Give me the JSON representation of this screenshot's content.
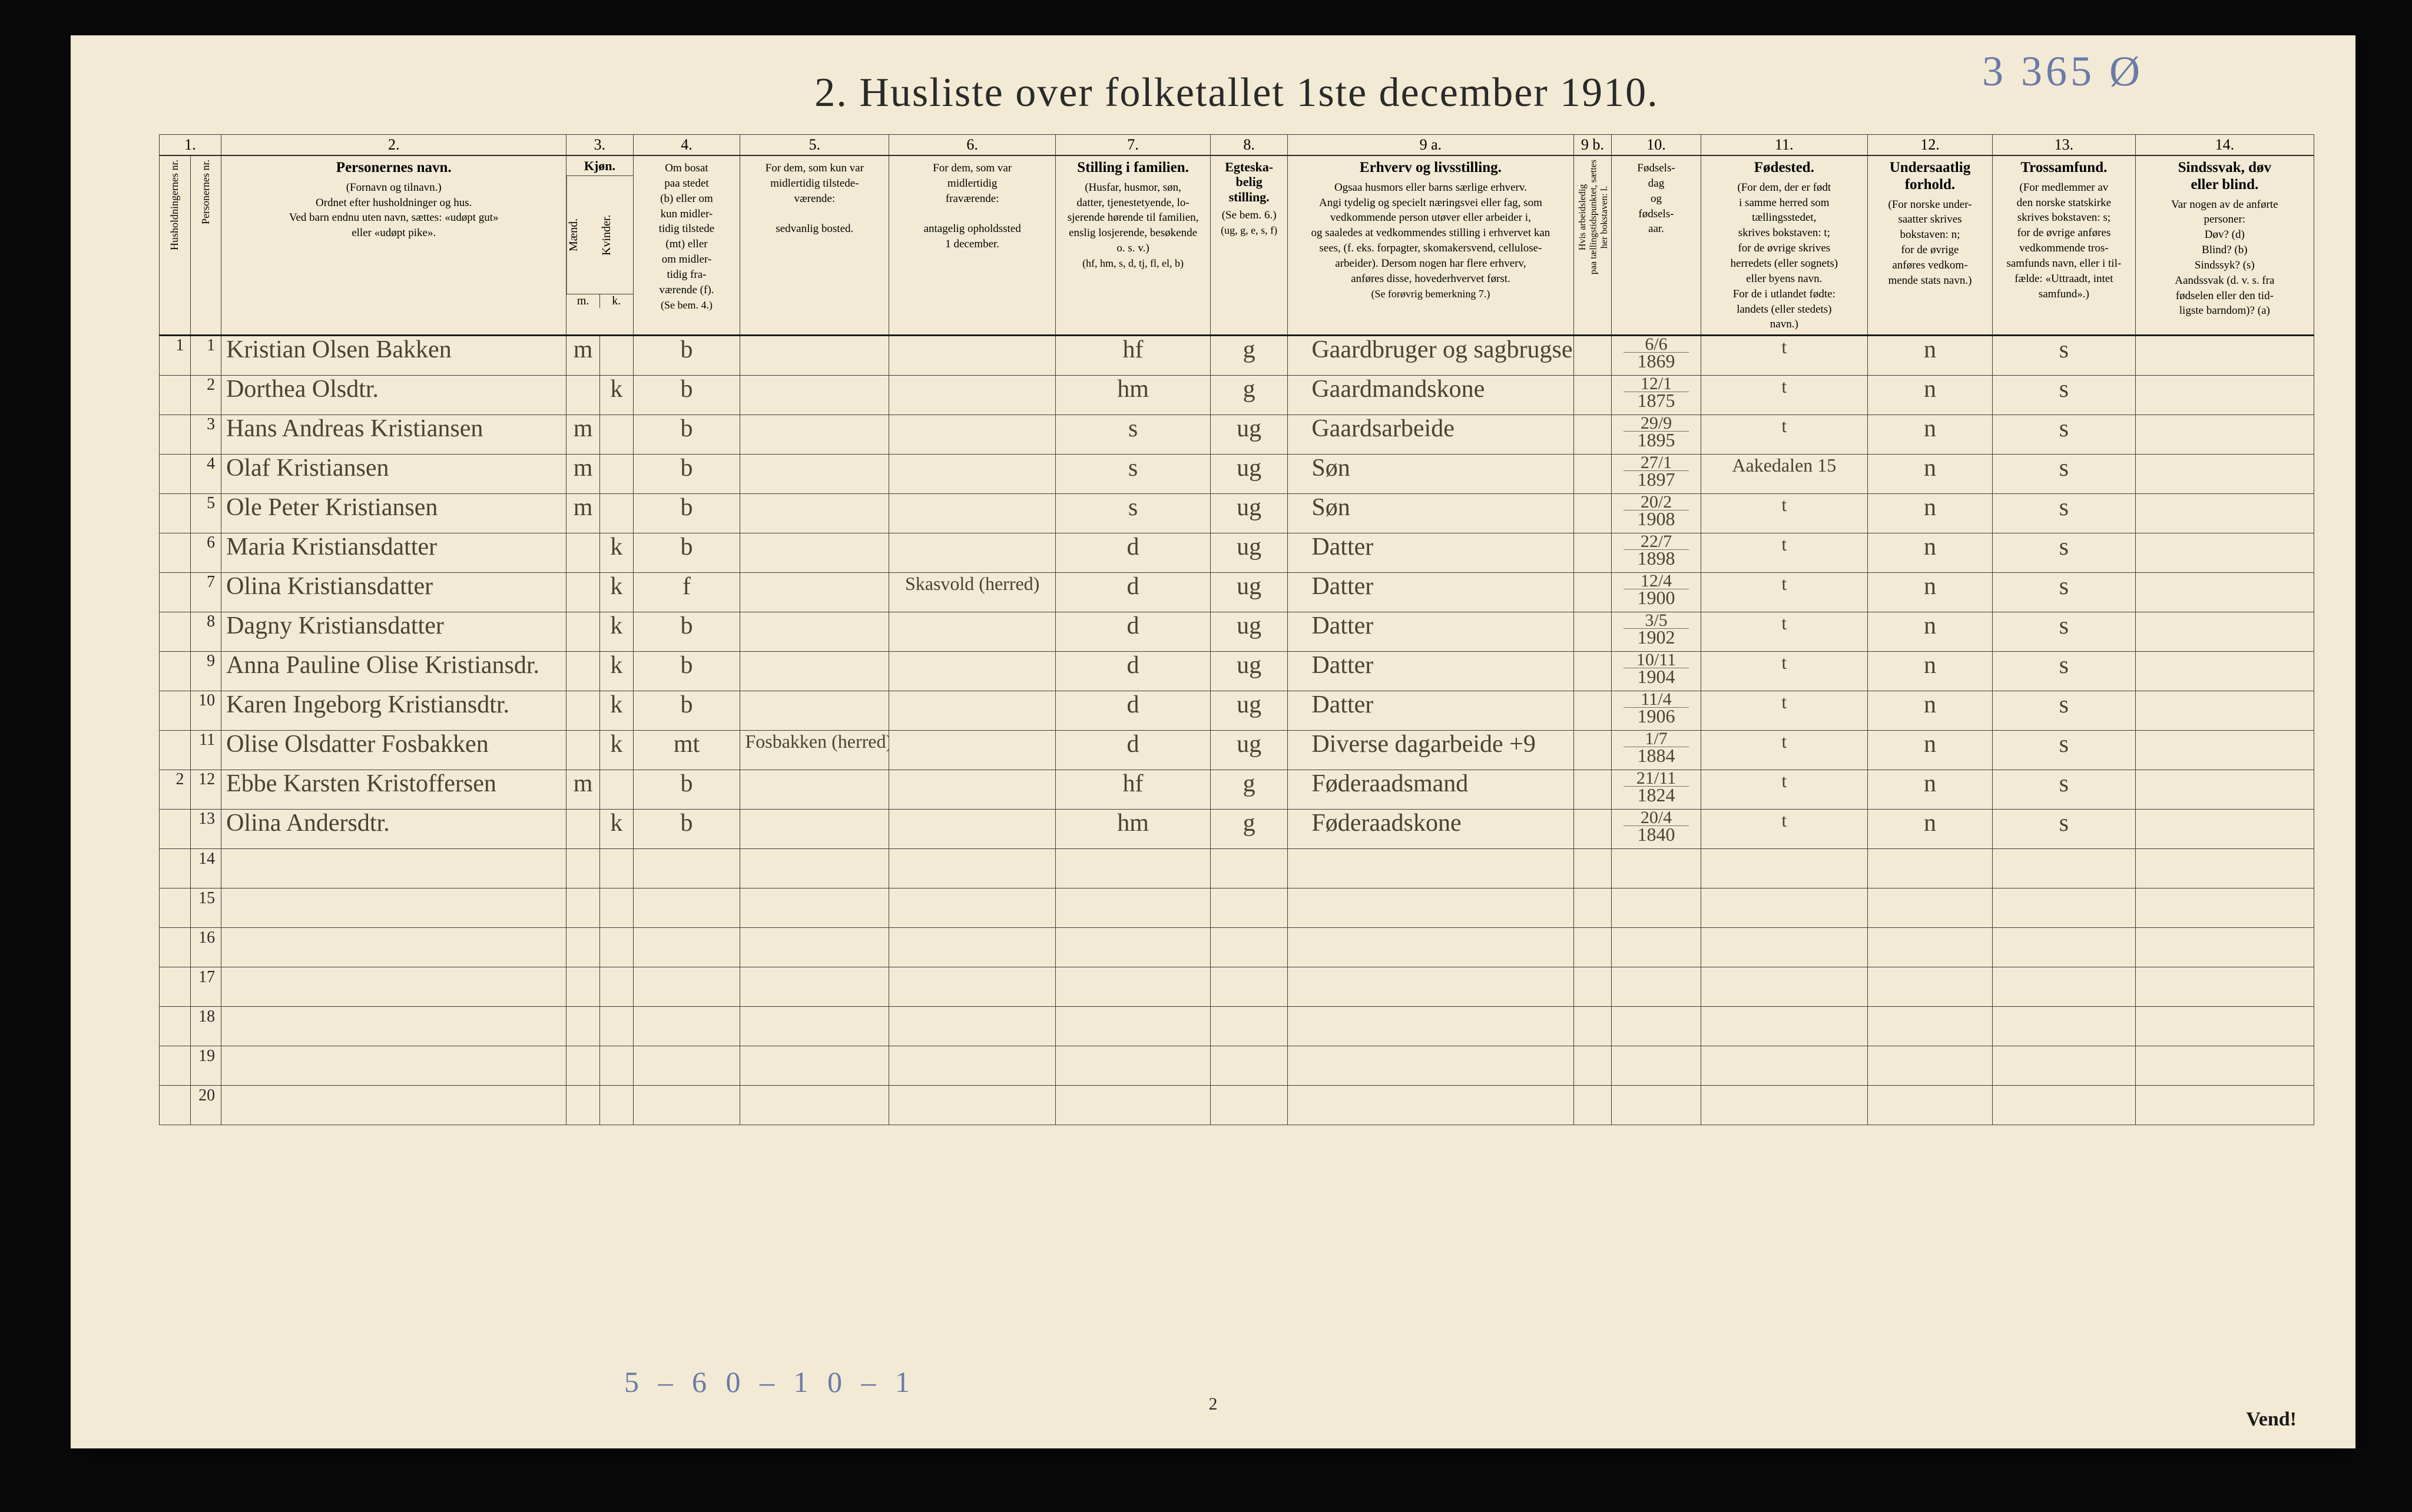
{
  "annotations": {
    "top_right_scribble": "3 365 Ø",
    "bottom_pencil": "5 – 6    0 – 1    0 – 1",
    "page_number": "2",
    "vend": "Vend!"
  },
  "title": "2.  Husliste over folketallet 1ste december 1910.",
  "header": {
    "col_numbers": [
      "1.",
      "2.",
      "3.",
      "4.",
      "5.",
      "6.",
      "7.",
      "8.",
      "9 a.",
      "9 b.",
      "10.",
      "11.",
      "12.",
      "13.",
      "14."
    ],
    "col3_sub": {
      "m": "m.",
      "k": "k."
    },
    "labels": {
      "c1": {
        "title": "",
        "body": "Husholdningernes nr."
      },
      "c1b": {
        "title": "",
        "body": "Personernes nr."
      },
      "c2": {
        "title": "Personernes navn.",
        "body": "(Fornavn og tilnavn.)\nOrdnet efter husholdninger og hus.\nVed barn endnu uten navn, sættes: «udøpt gut»\neller «udøpt pike»."
      },
      "c3": {
        "title": "Kjøn.",
        "body": "Mænd.\nKvinder."
      },
      "c4": {
        "title": "",
        "body": "Om bosat\npaa stedet\n(b) eller om\nkun midler-\ntidig tilstede\n(mt) eller\nom midler-\ntidig fra-\nværende (f).",
        "foot": "(Se bem. 4.)"
      },
      "c5": {
        "title": "",
        "body": "For dem, som kun var\nmidlertidig tilstede-\nværende:\n\nsedvanlig bosted."
      },
      "c6": {
        "title": "",
        "body": "For dem, som var\nmidlertidig\nfraværende:\n\nantagelig opholdssted\n1 december."
      },
      "c7": {
        "title": "Stilling i familien.",
        "body": "(Husfar, husmor, søn,\ndatter, tjenestetyende, lo-\nsjerende hørende til familien,\nenslig losjerende, besøkende\no. s. v.)",
        "foot": "(hf, hm, s, d, tj, fl,\nel, b)"
      },
      "c8": {
        "title": "Egteska-\nbelig\nstilling.",
        "body": "(Se bem. 6.)",
        "foot": "(ug, g,\ne, s, f)"
      },
      "c9a": {
        "title": "Erhverv og livsstilling.",
        "body": "Ogsaa husmors eller barns særlige erhverv.\nAngi tydelig og specielt næringsvei eller fag, som\nvedkommende person utøver eller arbeider i,\nog saaledes at vedkommendes stilling i erhvervet kan\nsees, (f. eks. forpagter, skomakersvend, cellulose-\narbeider). Dersom nogen har flere erhverv,\nanføres disse, hovederhvervet først.",
        "foot": "(Se forøvrig bemerkning 7.)"
      },
      "c9b": {
        "title": "",
        "body": "Hvis arbeidsledig\npaa tællingstidspunktet, sættes\nher bokstaven: l."
      },
      "c10": {
        "title": "",
        "body": "Fødsels-\ndag\nog\nfødsels-\naar."
      },
      "c11": {
        "title": "Fødested.",
        "body": "(For dem, der er født\ni samme herred som\ntællingsstedet,\nskrives bokstaven: t;\nfor de øvrige skrives\nherredets (eller sognets)\neller byens navn.\nFor de i utlandet fødte:\nlandets (eller stedets)\nnavn.)"
      },
      "c12": {
        "title": "Undersaatlig\nforhold.",
        "body": "(For norske under-\nsaatter skrives\nbokstaven: n;\nfor de øvrige\nanføres vedkom-\nmende stats navn.)"
      },
      "c13": {
        "title": "Trossamfund.",
        "body": "(For medlemmer av\nden norske statskirke\nskrives bokstaven: s;\nfor de øvrige anføres\nvedkommende tros-\nsamfunds navn, eller i til-\nfælde: «Uttraadt, intet\nsamfund».)"
      },
      "c14": {
        "title": "Sindssvak, døv\neller blind.",
        "body": "Var nogen av de anførte\npersoner:\nDøv?        (d)\nBlind?      (b)\nSindssyk?  (s)\nAandssvak (d. v. s. fra\nfødselen eller den tid-\nligste barndom)? (a)"
      }
    }
  },
  "rows": [
    {
      "hh": "1",
      "pn": "1",
      "name": "Kristian Olsen Bakken",
      "sex": "m",
      "res": "b",
      "usual": "",
      "away": "",
      "fam": "hf",
      "mar": "g",
      "occ": "Gaardbruger og sagbrugseier",
      "led": "",
      "dob_top": "6/6",
      "dob_bot": "1869",
      "birthplace": "t",
      "nat": "n",
      "rel": "s",
      "dis": ""
    },
    {
      "hh": "",
      "pn": "2",
      "name": "Dorthea Olsdtr.",
      "sex": "k",
      "res": "b",
      "usual": "",
      "away": "",
      "fam": "hm",
      "mar": "g",
      "occ": "Gaardmandskone",
      "led": "",
      "dob_top": "12/1",
      "dob_bot": "1875",
      "birthplace": "t",
      "nat": "n",
      "rel": "s",
      "dis": ""
    },
    {
      "hh": "",
      "pn": "3",
      "name": "Hans Andreas Kristiansen",
      "sex": "m",
      "res": "b",
      "usual": "",
      "away": "",
      "fam": "s",
      "mar": "ug",
      "occ": "Gaardsarbeide",
      "led": "",
      "dob_top": "29/9",
      "dob_bot": "1895",
      "birthplace": "t",
      "nat": "n",
      "rel": "s",
      "dis": ""
    },
    {
      "hh": "",
      "pn": "4",
      "name": "Olaf Kristiansen",
      "sex": "m",
      "res": "b",
      "usual": "",
      "away": "",
      "fam": "s",
      "mar": "ug",
      "occ": "Søn",
      "led": "",
      "dob_top": "27/1",
      "dob_bot": "1897",
      "birthplace": "Aakedalen 15",
      "nat": "n",
      "rel": "s",
      "dis": ""
    },
    {
      "hh": "",
      "pn": "5",
      "name": "Ole Peter Kristiansen",
      "sex": "m",
      "res": "b",
      "usual": "",
      "away": "",
      "fam": "s",
      "mar": "ug",
      "occ": "Søn",
      "led": "",
      "dob_top": "20/2",
      "dob_bot": "1908",
      "birthplace": "t",
      "nat": "n",
      "rel": "s",
      "dis": ""
    },
    {
      "hh": "",
      "pn": "6",
      "name": "Maria Kristiansdatter",
      "sex": "k",
      "res": "b",
      "usual": "",
      "away": "",
      "fam": "d",
      "mar": "ug",
      "occ": "Datter",
      "led": "",
      "dob_top": "22/7",
      "dob_bot": "1898",
      "birthplace": "t",
      "nat": "n",
      "rel": "s",
      "dis": ""
    },
    {
      "hh": "",
      "pn": "7",
      "name": "Olina Kristiansdatter",
      "sex": "k",
      "res": "f",
      "usual": "",
      "away": "Skasvold (herred)",
      "fam": "d",
      "mar": "ug",
      "occ": "Datter",
      "led": "",
      "dob_top": "12/4",
      "dob_bot": "1900",
      "birthplace": "t",
      "nat": "n",
      "rel": "s",
      "dis": ""
    },
    {
      "hh": "",
      "pn": "8",
      "name": "Dagny Kristiansdatter",
      "sex": "k",
      "res": "b",
      "usual": "",
      "away": "",
      "fam": "d",
      "mar": "ug",
      "occ": "Datter",
      "led": "",
      "dob_top": "3/5",
      "dob_bot": "1902",
      "birthplace": "t",
      "nat": "n",
      "rel": "s",
      "dis": ""
    },
    {
      "hh": "",
      "pn": "9",
      "name": "Anna Pauline Olise Kristiansdr.",
      "sex": "k",
      "res": "b",
      "usual": "",
      "away": "",
      "fam": "d",
      "mar": "ug",
      "occ": "Datter",
      "led": "",
      "dob_top": "10/11",
      "dob_bot": "1904",
      "birthplace": "t",
      "nat": "n",
      "rel": "s",
      "dis": ""
    },
    {
      "hh": "",
      "pn": "10",
      "name": "Karen Ingeborg Kristiansdtr.",
      "sex": "k",
      "res": "b",
      "usual": "",
      "away": "",
      "fam": "d",
      "mar": "ug",
      "occ": "Datter",
      "led": "",
      "dob_top": "11/4",
      "dob_bot": "1906",
      "birthplace": "t",
      "nat": "n",
      "rel": "s",
      "dis": ""
    },
    {
      "hh": "",
      "pn": "11",
      "name": "Olise Olsdatter Fosbakken",
      "sex": "k",
      "res": "mt",
      "usual": "Fosbakken (herred)",
      "away": "",
      "fam": "d",
      "mar": "ug",
      "occ": "Diverse dagarbeide   +9",
      "led": "",
      "dob_top": "1/7",
      "dob_bot": "1884",
      "birthplace": "t",
      "nat": "n",
      "rel": "s",
      "dis": ""
    },
    {
      "hh": "2",
      "pn": "12",
      "name": "Ebbe Karsten Kristoffersen",
      "sex": "m",
      "res": "b",
      "usual": "",
      "away": "",
      "fam": "hf",
      "mar": "g",
      "occ": "Føderaadsmand",
      "led": "",
      "dob_top": "21/11",
      "dob_bot": "1824",
      "birthplace": "t",
      "nat": "n",
      "rel": "s",
      "dis": ""
    },
    {
      "hh": "",
      "pn": "13",
      "name": "Olina Andersdtr.",
      "sex": "k",
      "res": "b",
      "usual": "",
      "away": "",
      "fam": "hm",
      "mar": "g",
      "occ": "Føderaadskone",
      "led": "",
      "dob_top": "20/4",
      "dob_bot": "1840",
      "birthplace": "t",
      "nat": "n",
      "rel": "s",
      "dis": ""
    }
  ],
  "blank_rows": [
    "14",
    "15",
    "16",
    "17",
    "18",
    "19",
    "20"
  ]
}
